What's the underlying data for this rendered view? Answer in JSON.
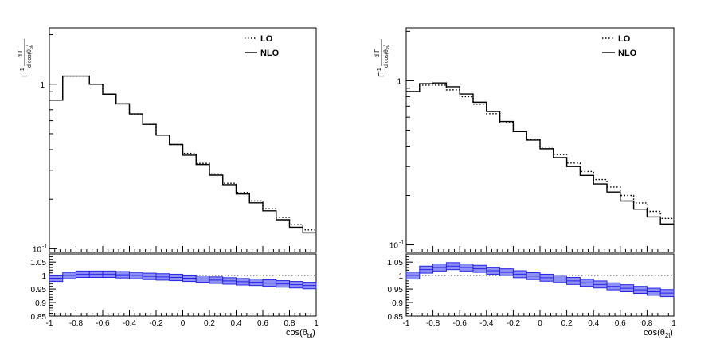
{
  "chart_data": [
    {
      "type": "histogram",
      "name": "left",
      "xlabel_main": "cos(θ",
      "xlabel_sub": "bl",
      "xlabel_close": ")",
      "ylabel_prefix": "Γ",
      "ylabel_exp": "-1",
      "ylabel_num": "d Γ",
      "ylabel_den": "d cos(θ",
      "ylabel_den_sub": "bl",
      "ylabel_den_close": ")",
      "xlim": [
        -1,
        1
      ],
      "ylim_log": [
        0.095,
        2.2
      ],
      "ratio_ylim": [
        0.85,
        1.08
      ],
      "x_ticks": [
        "-1",
        "-0.8",
        "-0.6",
        "-0.4",
        "-0.2",
        "0",
        "0.2",
        "0.4",
        "0.6",
        "0.8",
        "1"
      ],
      "y_tick_labels": [
        {
          "value": 1,
          "label": "1"
        },
        {
          "value": 0.1,
          "label": "10",
          "exp": "-1"
        }
      ],
      "ratio_ticks": [
        "0.85",
        "0.9",
        "0.95",
        "1",
        "1.05"
      ],
      "bin_edges": [
        -1,
        -0.9,
        -0.8,
        -0.7,
        -0.6,
        -0.5,
        -0.4,
        -0.3,
        -0.2,
        -0.1,
        0,
        0.1,
        0.2,
        0.3,
        0.4,
        0.5,
        0.6,
        0.7,
        0.8,
        0.9,
        1
      ],
      "series": [
        {
          "name": "LO",
          "style": "dotted",
          "values": [
            0.8,
            1.12,
            1.12,
            1.0,
            0.87,
            0.76,
            0.66,
            0.57,
            0.49,
            0.43,
            0.38,
            0.33,
            0.285,
            0.25,
            0.22,
            0.195,
            0.175,
            0.155,
            0.14,
            0.13
          ]
        },
        {
          "name": "NLO",
          "style": "solid",
          "values": [
            0.8,
            1.12,
            1.12,
            1.0,
            0.87,
            0.76,
            0.66,
            0.57,
            0.49,
            0.43,
            0.37,
            0.325,
            0.28,
            0.245,
            0.215,
            0.19,
            0.17,
            0.15,
            0.135,
            0.125
          ]
        }
      ],
      "ratio": {
        "center": [
          0.99,
          1.0,
          1.005,
          1.005,
          1.005,
          1.003,
          1.0,
          0.997,
          0.995,
          0.993,
          0.99,
          0.987,
          0.983,
          0.98,
          0.977,
          0.975,
          0.972,
          0.969,
          0.966,
          0.963
        ],
        "half_width": 0.012
      },
      "legend": {
        "position": "top-right",
        "entries": [
          "LO",
          "NLO"
        ]
      }
    },
    {
      "type": "histogram",
      "name": "right",
      "xlabel_main": "cos(θ",
      "xlabel_sub": "2l",
      "xlabel_close": ")",
      "ylabel_prefix": "Γ",
      "ylabel_exp": "-1",
      "ylabel_num": "d Γ",
      "ylabel_den": "d cos(θ",
      "ylabel_den_sub": "2l",
      "ylabel_den_close": ")",
      "xlim": [
        -1,
        1
      ],
      "ylim_log": [
        0.09,
        2.1
      ],
      "ratio_ylim": [
        0.85,
        1.08
      ],
      "x_ticks": [
        "-1",
        "-0.8",
        "-0.6",
        "-0.4",
        "-0.2",
        "0",
        "0.2",
        "0.4",
        "0.6",
        "0.8",
        "1"
      ],
      "y_tick_labels": [
        {
          "value": 1,
          "label": "1"
        },
        {
          "value": 0.1,
          "label": "10",
          "exp": "-1"
        }
      ],
      "ratio_ticks": [
        "0.85",
        "0.9",
        "0.95",
        "1",
        "1.05"
      ],
      "bin_edges": [
        -1,
        -0.9,
        -0.8,
        -0.7,
        -0.6,
        -0.5,
        -0.4,
        -0.3,
        -0.2,
        -0.1,
        0,
        0.1,
        0.2,
        0.3,
        0.4,
        0.5,
        0.6,
        0.7,
        0.8,
        0.9,
        1
      ],
      "series": [
        {
          "name": "LO",
          "style": "dotted",
          "values": [
            0.86,
            0.94,
            0.94,
            0.88,
            0.8,
            0.72,
            0.63,
            0.555,
            0.49,
            0.44,
            0.395,
            0.355,
            0.315,
            0.28,
            0.25,
            0.225,
            0.2,
            0.18,
            0.16,
            0.145
          ]
        },
        {
          "name": "NLO",
          "style": "solid",
          "values": [
            0.86,
            0.96,
            0.97,
            0.92,
            0.83,
            0.74,
            0.65,
            0.565,
            0.49,
            0.435,
            0.385,
            0.34,
            0.3,
            0.265,
            0.235,
            0.21,
            0.185,
            0.165,
            0.148,
            0.134
          ]
        }
      ],
      "ratio": {
        "center": [
          1.0,
          1.022,
          1.03,
          1.035,
          1.03,
          1.025,
          1.018,
          1.012,
          1.005,
          0.998,
          0.992,
          0.987,
          0.98,
          0.973,
          0.967,
          0.96,
          0.953,
          0.947,
          0.94,
          0.935
        ],
        "half_width": 0.013
      },
      "legend": {
        "position": "top-right",
        "entries": [
          "LO",
          "NLO"
        ]
      }
    }
  ],
  "colors": {
    "band": "#2424e6",
    "band_fill": "#8f8ff5",
    "line": "#000000"
  }
}
